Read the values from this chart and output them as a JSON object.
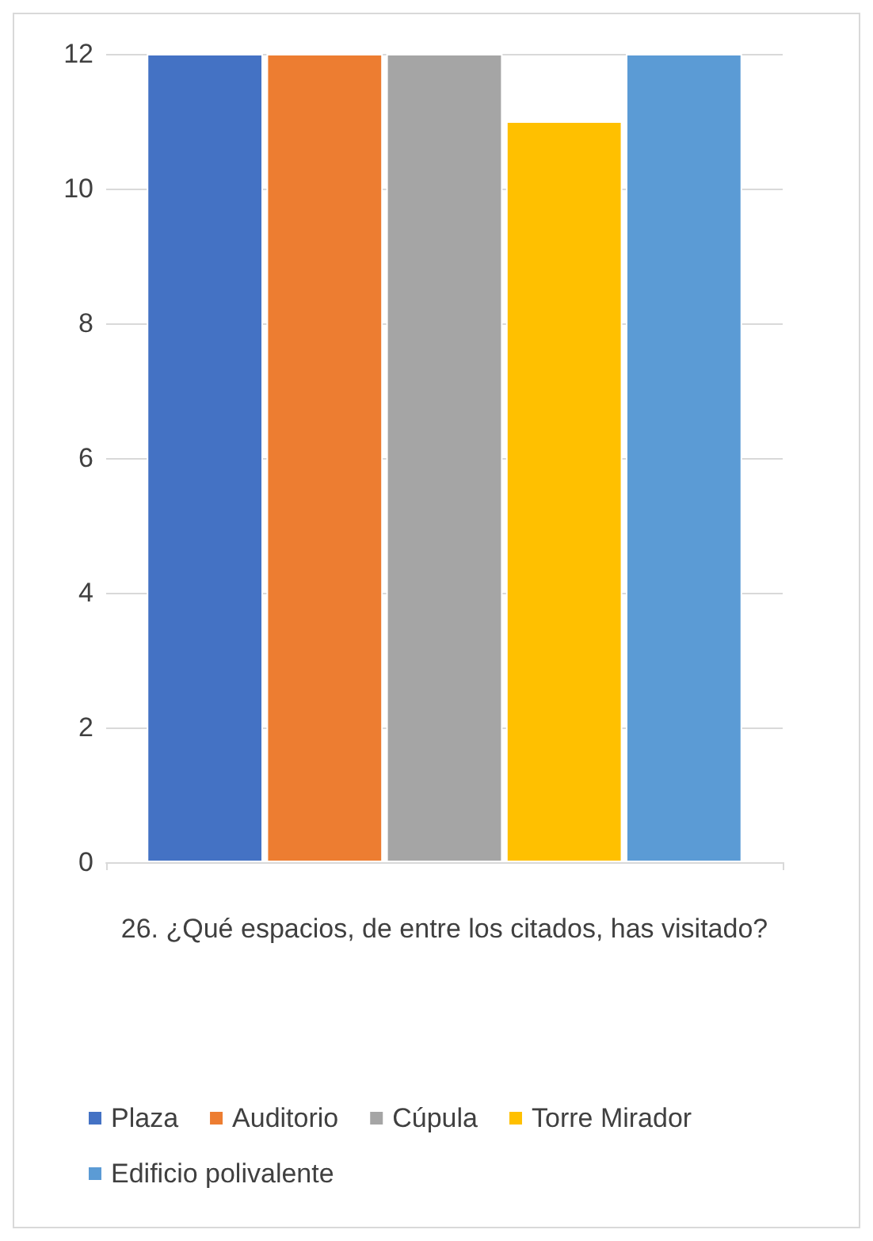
{
  "chart_data": {
    "type": "bar",
    "xlabel": "26. ¿Qué espacios, de entre los citados, has visitado?",
    "categories": [
      null
    ],
    "series": [
      {
        "name": "Plaza",
        "color": "#4472c4",
        "values": [
          12
        ]
      },
      {
        "name": "Auditorio",
        "color": "#ed7d31",
        "values": [
          12
        ]
      },
      {
        "name": "Cúpula",
        "color": "#a5a5a5",
        "values": [
          12
        ]
      },
      {
        "name": "Torre Mirador",
        "color": "#ffc000",
        "values": [
          11
        ]
      },
      {
        "name": "Edificio polivalente",
        "color": "#5b9bd5",
        "values": [
          12
        ]
      }
    ],
    "ylim": [
      0,
      12
    ],
    "yticks": [
      0,
      2,
      4,
      6,
      8,
      10,
      12
    ],
    "grid": "y",
    "legend": "bottom"
  }
}
